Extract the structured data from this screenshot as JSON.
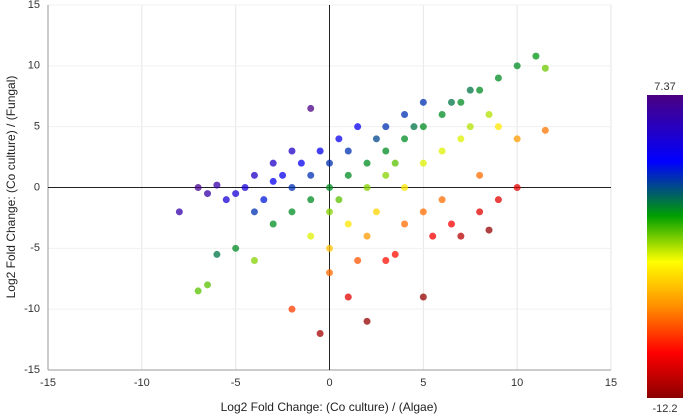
{
  "chart_data": {
    "type": "scatter",
    "x_label": "Log2 Fold Change: (Co culture) / (Algae)",
    "y_label": "Log2 Fold Change: (Co culture) / (Fungal)",
    "xlim": [
      -15,
      15
    ],
    "ylim": [
      -15,
      15
    ],
    "xticks": [
      -15,
      -10,
      -5,
      0,
      5,
      10,
      15
    ],
    "yticks": [
      -15,
      -10,
      -5,
      0,
      5,
      10,
      15
    ],
    "grid": true,
    "colorbar": {
      "min": -12.2,
      "max": 7.37
    },
    "series": [
      {
        "x": [
          -8,
          -7,
          -6.5,
          -6,
          -5.5,
          -5,
          -5,
          -4.5,
          -4,
          -4,
          -3.5,
          -3,
          -3,
          -3,
          -2.5,
          -2,
          -2,
          -2,
          -1.5,
          -1,
          -1,
          -1,
          -1,
          -0.5,
          0,
          0,
          0,
          0,
          0,
          0.5,
          0.5,
          1,
          1,
          1,
          1,
          1.5,
          1.5,
          2,
          2,
          2,
          2,
          2.5,
          2.5,
          3,
          3,
          3,
          3,
          3.5,
          3.5,
          4,
          4,
          4,
          4,
          4.5,
          5,
          5,
          5,
          5,
          5.5,
          6,
          6,
          6,
          6.5,
          6.5,
          7,
          7,
          7,
          7.5,
          7.5,
          8,
          8,
          8,
          8.5,
          8.5,
          9,
          9,
          9,
          10,
          10,
          10,
          11,
          11.5,
          11.5,
          -7,
          -6.5,
          -6,
          -2,
          -0.5,
          -4,
          5
        ],
        "values": [
          -2,
          0,
          -0.5,
          0.2,
          -1,
          -0.5,
          -5,
          0,
          1,
          -2,
          -1,
          2,
          0.5,
          -3,
          1,
          3,
          0,
          -2,
          2,
          6.5,
          1,
          -1,
          -4,
          3,
          0,
          2,
          -2,
          -5,
          -7,
          4,
          -1,
          1,
          3,
          -3,
          -9,
          -6,
          5,
          2,
          0,
          -4,
          -11,
          4,
          -2,
          3,
          5,
          1,
          -6,
          -5.5,
          2,
          4,
          6,
          0,
          -3,
          5,
          5,
          7,
          2,
          -2,
          -4,
          6,
          3,
          -1,
          7,
          -3,
          7,
          4,
          -4,
          8,
          5,
          8,
          1,
          -2,
          6,
          -3.5,
          9,
          5,
          -1,
          10,
          4,
          0,
          10.8,
          9.8,
          4.7,
          -8.5,
          -8,
          -5.5,
          -10,
          -12,
          -6,
          -9
        ],
        "color_values": [
          6,
          7,
          6,
          6.2,
          4.5,
          4.5,
          0,
          4.5,
          5,
          2,
          2.5,
          5,
          3.5,
          0,
          3.5,
          5,
          2,
          0,
          3.5,
          7.3,
          2,
          0,
          -3,
          3.5,
          0,
          2,
          -2,
          -5,
          -7,
          3.5,
          -1.5,
          0,
          2,
          -4,
          -10,
          -7.5,
          3.5,
          0,
          -2,
          -6,
          -12,
          1.5,
          -4.5,
          0,
          2,
          -2,
          -9,
          -9,
          -1.5,
          0,
          2,
          -4,
          -7,
          0.5,
          0,
          2,
          -3,
          -7,
          -9.5,
          0,
          -3,
          -7,
          0.5,
          -9.5,
          0,
          -3,
          -11,
          0.5,
          -2.5,
          0,
          -7,
          -10,
          -2.5,
          -12,
          0,
          -4,
          -10,
          0,
          -6,
          -10,
          -0.2,
          -1.7,
          -6.8,
          -1.5,
          -1.5,
          0.5,
          -8,
          -11.5,
          -2,
          -12
        ]
      }
    ]
  }
}
